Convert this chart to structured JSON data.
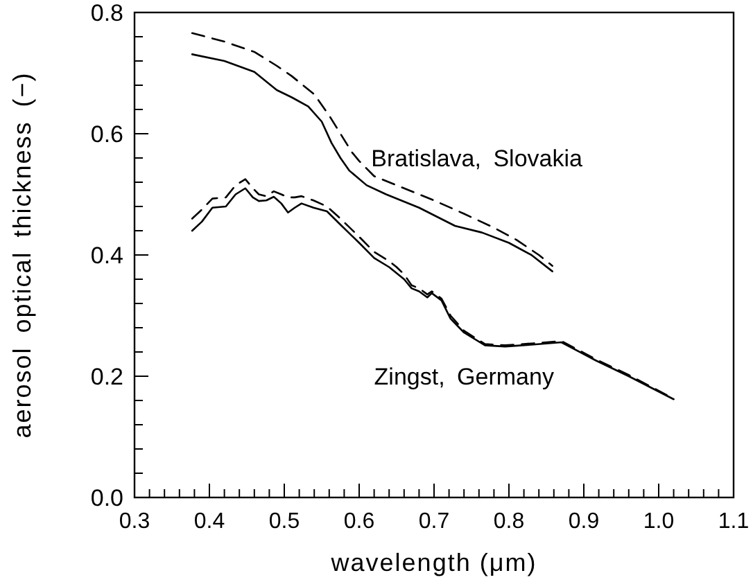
{
  "chart_data": {
    "type": "line",
    "xlabel": "wavelength (μm)",
    "ylabel": "aerosol optical thickness (−)",
    "xlim": [
      0.3,
      1.1
    ],
    "ylim": [
      0,
      0.8
    ],
    "xticks": [
      {
        "value": 0.3,
        "label": "0.3"
      },
      {
        "value": 0.32,
        "label": null
      },
      {
        "value": 0.34,
        "label": null
      },
      {
        "value": 0.36,
        "label": null
      },
      {
        "value": 0.38,
        "label": null
      },
      {
        "value": 0.4,
        "label": "0.4"
      },
      {
        "value": 0.42,
        "label": null
      },
      {
        "value": 0.44,
        "label": null
      },
      {
        "value": 0.46,
        "label": null
      },
      {
        "value": 0.48,
        "label": null
      },
      {
        "value": 0.5,
        "label": "0.5"
      },
      {
        "value": 0.52,
        "label": null
      },
      {
        "value": 0.54,
        "label": null
      },
      {
        "value": 0.56,
        "label": null
      },
      {
        "value": 0.58,
        "label": null
      },
      {
        "value": 0.6,
        "label": "0.6"
      },
      {
        "value": 0.62,
        "label": null
      },
      {
        "value": 0.64,
        "label": null
      },
      {
        "value": 0.66,
        "label": null
      },
      {
        "value": 0.68,
        "label": null
      },
      {
        "value": 0.7,
        "label": "0.7"
      },
      {
        "value": 0.72,
        "label": null
      },
      {
        "value": 0.74,
        "label": null
      },
      {
        "value": 0.76,
        "label": null
      },
      {
        "value": 0.78,
        "label": null
      },
      {
        "value": 0.8,
        "label": "0.8"
      },
      {
        "value": 0.82,
        "label": null
      },
      {
        "value": 0.84,
        "label": null
      },
      {
        "value": 0.86,
        "label": null
      },
      {
        "value": 0.88,
        "label": null
      },
      {
        "value": 0.9,
        "label": "0.9"
      },
      {
        "value": 0.92,
        "label": null
      },
      {
        "value": 0.94,
        "label": null
      },
      {
        "value": 0.96,
        "label": null
      },
      {
        "value": 0.98,
        "label": null
      },
      {
        "value": 1.0,
        "label": "1.0"
      },
      {
        "value": 1.02,
        "label": null
      },
      {
        "value": 1.04,
        "label": null
      },
      {
        "value": 1.06,
        "label": null
      },
      {
        "value": 1.08,
        "label": null
      },
      {
        "value": 1.1,
        "label": "1.1"
      }
    ],
    "yticks": [
      {
        "value": 0,
        "label": "0.0"
      },
      {
        "value": 0.04,
        "label": null
      },
      {
        "value": 0.08,
        "label": null
      },
      {
        "value": 0.12,
        "label": null
      },
      {
        "value": 0.16,
        "label": null
      },
      {
        "value": 0.2,
        "label": "0.2"
      },
      {
        "value": 0.24,
        "label": null
      },
      {
        "value": 0.28,
        "label": null
      },
      {
        "value": 0.32,
        "label": null
      },
      {
        "value": 0.36,
        "label": null
      },
      {
        "value": 0.4,
        "label": "0.4"
      },
      {
        "value": 0.44,
        "label": null
      },
      {
        "value": 0.48,
        "label": null
      },
      {
        "value": 0.52,
        "label": null
      },
      {
        "value": 0.56,
        "label": null
      },
      {
        "value": 0.6,
        "label": "0.6"
      },
      {
        "value": 0.64,
        "label": null
      },
      {
        "value": 0.68,
        "label": null
      },
      {
        "value": 0.72,
        "label": null
      },
      {
        "value": 0.76,
        "label": null
      },
      {
        "value": 0.8,
        "label": "0.8"
      }
    ],
    "grid": false,
    "marker": "none",
    "annotations": [
      "Bratislava, Slovakia",
      "Zingst, Germany"
    ],
    "series": [
      {
        "color": "#000000",
        "line_style": "solid",
        "x": [
          0.377,
          0.42,
          0.46,
          0.49,
          0.51,
          0.532,
          0.55,
          0.563,
          0.575,
          0.587,
          0.61,
          0.636,
          0.68,
          0.728,
          0.764,
          0.8,
          0.83,
          0.858
        ],
        "values": [
          0.731,
          0.72,
          0.702,
          0.672,
          0.66,
          0.645,
          0.62,
          0.585,
          0.56,
          0.539,
          0.515,
          0.5,
          0.478,
          0.448,
          0.437,
          0.42,
          0.4,
          0.373
        ]
      },
      {
        "color": "#000000",
        "line_style": "dashed",
        "x": [
          0.377,
          0.42,
          0.46,
          0.49,
          0.51,
          0.54,
          0.56,
          0.575,
          0.59,
          0.6,
          0.62,
          0.65,
          0.7,
          0.74,
          0.78,
          0.81,
          0.84,
          0.858
        ],
        "values": [
          0.766,
          0.752,
          0.735,
          0.712,
          0.695,
          0.665,
          0.63,
          0.6,
          0.57,
          0.555,
          0.53,
          0.515,
          0.49,
          0.468,
          0.445,
          0.425,
          0.4,
          0.382
        ]
      },
      {
        "color": "#000000",
        "line_style": "solid",
        "x": [
          0.377,
          0.39,
          0.404,
          0.422,
          0.435,
          0.448,
          0.458,
          0.466,
          0.476,
          0.486,
          0.496,
          0.505,
          0.514,
          0.523,
          0.539,
          0.557,
          0.575,
          0.6,
          0.62,
          0.64,
          0.65,
          0.66,
          0.67,
          0.68,
          0.691,
          0.697,
          0.71,
          0.722,
          0.74,
          0.768,
          0.795,
          0.83,
          0.87,
          0.916,
          0.96,
          1.02
        ],
        "values": [
          0.44,
          0.455,
          0.478,
          0.48,
          0.5,
          0.51,
          0.495,
          0.489,
          0.49,
          0.496,
          0.485,
          0.47,
          0.478,
          0.485,
          0.478,
          0.472,
          0.45,
          0.42,
          0.395,
          0.38,
          0.37,
          0.36,
          0.345,
          0.34,
          0.33,
          0.337,
          0.325,
          0.295,
          0.272,
          0.251,
          0.249,
          0.252,
          0.256,
          0.226,
          0.2,
          0.162
        ]
      },
      {
        "color": "#000000",
        "line_style": "dashed",
        "x": [
          0.377,
          0.39,
          0.404,
          0.422,
          0.435,
          0.448,
          0.458,
          0.466,
          0.476,
          0.486,
          0.496,
          0.505,
          0.514,
          0.523,
          0.539,
          0.557,
          0.575,
          0.6,
          0.62,
          0.64,
          0.65,
          0.66,
          0.67,
          0.68,
          0.691,
          0.697,
          0.71,
          0.722,
          0.74,
          0.768,
          0.795,
          0.83,
          0.87,
          0.916,
          0.96,
          1.02
        ],
        "values": [
          0.46,
          0.475,
          0.493,
          0.495,
          0.515,
          0.525,
          0.51,
          0.5,
          0.497,
          0.505,
          0.5,
          0.495,
          0.495,
          0.497,
          0.49,
          0.48,
          0.46,
          0.43,
          0.405,
          0.39,
          0.38,
          0.368,
          0.35,
          0.345,
          0.335,
          0.34,
          0.328,
          0.3,
          0.275,
          0.253,
          0.251,
          0.254,
          0.258,
          0.228,
          0.202,
          0.163
        ]
      }
    ]
  }
}
